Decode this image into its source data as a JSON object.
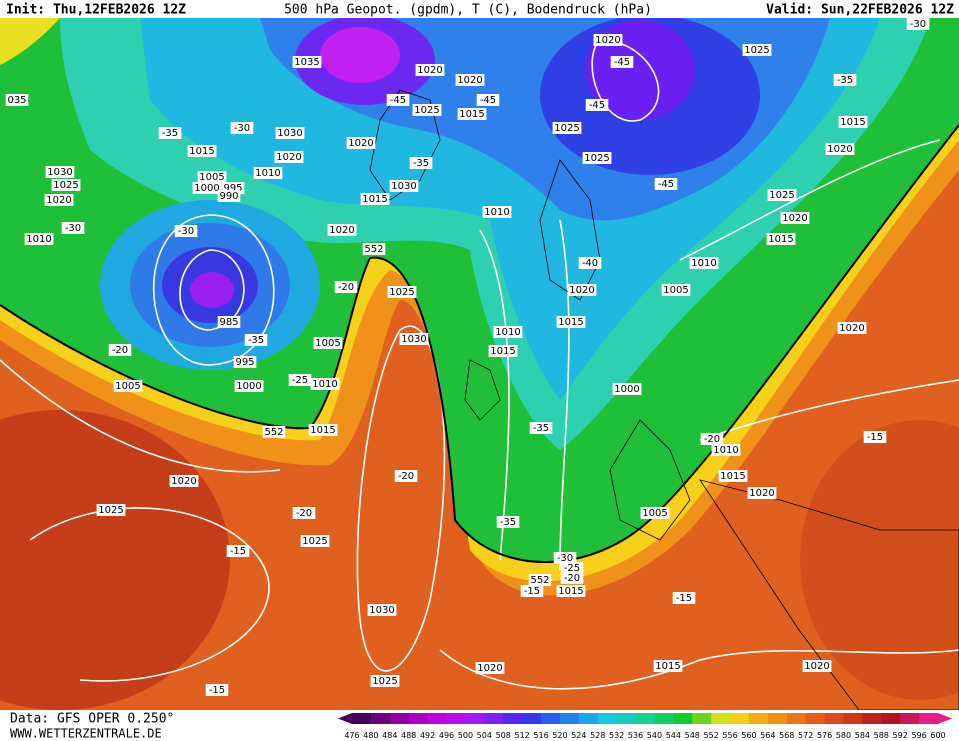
{
  "header": {
    "init": "Init: Thu,12FEB2026 12Z",
    "title": "500 hPa Geopot. (gpdm), T (C), Bodendruck (hPa)",
    "valid": "Valid: Sun,22FEB2026 12Z"
  },
  "footer": {
    "data": "Data: GFS OPER 0.250°",
    "site": "WWW.WETTERZENTRALE.DE"
  },
  "colorbar": {
    "ticks": [
      476,
      480,
      484,
      488,
      492,
      496,
      500,
      504,
      508,
      512,
      516,
      520,
      524,
      528,
      532,
      536,
      540,
      544,
      548,
      552,
      556,
      560,
      564,
      568,
      572,
      576,
      580,
      584,
      588,
      592,
      596,
      600
    ]
  },
  "map_labels": [
    "1035",
    "1020",
    "1020",
    "1025",
    "-45",
    "1020",
    "-45",
    "1025",
    "-45",
    "1015",
    "-45",
    "1025",
    "-35",
    "1015",
    "1020",
    "-35",
    "-30",
    "1030",
    "1015",
    "1020",
    "1020",
    "1030",
    "1025",
    "1020",
    "1005",
    "1000",
    "995",
    "990",
    "1010",
    "1025",
    "-35",
    "1030",
    "1015",
    "1010",
    "-45",
    "1025",
    "1020",
    "1015",
    "1010",
    "-30",
    "-30",
    "1020",
    "552",
    "1010",
    "-40",
    "1020",
    "1005",
    "-20",
    "1025",
    "1015",
    "1020",
    "985",
    "-35",
    "1005",
    "1030",
    "1010",
    "1015",
    "-20",
    "995",
    "1005",
    "1000",
    "-25",
    "1010",
    "1000",
    "-15",
    "552",
    "1015",
    "-35",
    "-20",
    "1010",
    "-20",
    "1015",
    "1020",
    "1020",
    "1025",
    "-20",
    "1005",
    "-35",
    "1025",
    "-15",
    "-30",
    "-25",
    "-20",
    "552",
    "-15",
    "1015",
    "-15",
    "1030",
    "1020",
    "1015",
    "1020",
    "-15",
    "1025",
    "-30",
    "035"
  ]
}
